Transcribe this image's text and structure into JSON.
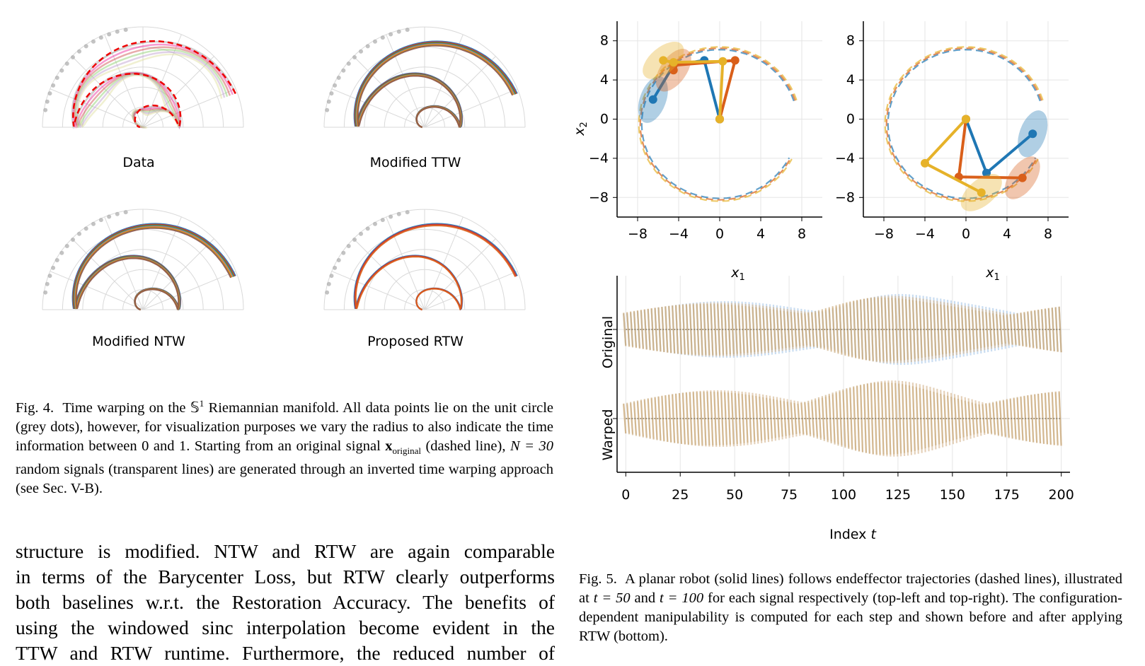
{
  "fig4": {
    "panels": [
      {
        "label": "Data"
      },
      {
        "label": "Modified TTW"
      },
      {
        "label": "Modified NTW"
      },
      {
        "label": "Proposed RTW"
      }
    ],
    "caption_prefix": "Fig. 4.",
    "caption_part1": "Time warping on the ",
    "caption_sym": "𝕊",
    "caption_sup": "1",
    "caption_part2": " Riemannian manifold. All data points lie on the unit circle (grey dots), however, for visualization purposes we vary the radius to also indicate the time information between 0 and 1. Starting from an original signal ",
    "caption_x": "x",
    "caption_sub": "original",
    "caption_part3": " (dashed line), ",
    "caption_N": "N = 30",
    "caption_part4": " random signals (transparent lines) are generated through an inverted time warping approach (see Sec. V-B)."
  },
  "body_lines": [
    "structure is modified. NTW and RTW are again comparable",
    "in terms of the Barycenter Loss, but RTW clearly outperforms",
    "both baselines w.r.t. the Restoration Accuracy. The benefits of",
    "using the windowed sinc interpolation become evident in the",
    "TTW and RTW runtime. Furthermore, the reduced number of"
  ],
  "fig5": {
    "caption_prefix": "Fig. 5.",
    "caption_part1": "A planar robot (solid lines) follows endeffector trajectories (dashed lines), illustrated at ",
    "caption_t50": "t = 50",
    "caption_and": " and ",
    "caption_t100": "t = 100",
    "caption_part2": " for each signal respectively (top-left and top-right). The configuration-dependent manipulability is computed for each step and shown before and after applying RTW (bottom).",
    "top_left": {
      "xlabel": "x",
      "xlabel_sub": "1",
      "ylabel": "x",
      "ylabel_sub": "2"
    },
    "top_right": {
      "xlabel": "x",
      "xlabel_sub": "1"
    },
    "bottom": {
      "row_labels": [
        "Original",
        "Warped"
      ],
      "xlabel_prefix": "Index ",
      "xlabel_var": "t"
    },
    "colors": {
      "blue": "#1f77b4",
      "orange": "#d95f1a",
      "yellow": "#e6b229",
      "grey": "#888888",
      "tan": "#c8b08a"
    }
  },
  "chart_data": [
    {
      "type": "line",
      "title": "",
      "xlabel": "x1",
      "ylabel": "x2",
      "xlim": [
        -10,
        10
      ],
      "ylim": [
        -10,
        10
      ],
      "xticks": [
        -8,
        -4,
        0,
        4,
        8
      ],
      "yticks": [
        8,
        4,
        0,
        -4,
        -8
      ],
      "grid": true,
      "series": [
        {
          "name": "",
          "x": [
            0,
            -1.5,
            -4.5,
            -6.5
          ],
          "y": [
            0,
            6,
            5.5,
            2
          ]
        },
        {
          "name": "",
          "x": [
            0,
            1.5,
            -4.5,
            -4.5
          ],
          "y": [
            0,
            6,
            5.5,
            5.0
          ]
        },
        {
          "name": "",
          "x": [
            0,
            0.3,
            -4.5,
            -5.5
          ],
          "y": [
            0,
            5.9,
            5.8,
            6
          ]
        }
      ]
    },
    {
      "type": "line",
      "title": "",
      "xlabel": "x1",
      "ylabel": "",
      "xlim": [
        -10,
        10
      ],
      "ylim": [
        -10,
        10
      ],
      "xticks": [
        -8,
        -4,
        0,
        4,
        8
      ],
      "yticks": [
        8,
        4,
        0,
        -4,
        -8
      ],
      "grid": true,
      "series": [
        {
          "name": "",
          "x": [
            0,
            2,
            6.5
          ],
          "y": [
            0,
            -5.5,
            -1.5
          ]
        },
        {
          "name": "",
          "x": [
            0,
            -0.7,
            5.5
          ],
          "y": [
            0,
            -5.9,
            -6
          ]
        },
        {
          "name": "",
          "x": [
            0,
            -4,
            1.5
          ],
          "y": [
            0,
            -4.5,
            -7.5
          ]
        }
      ]
    },
    {
      "type": "area",
      "title": "",
      "xlabel": "Index t",
      "ylabel": "",
      "xlim": [
        -4,
        204
      ],
      "xticks": [
        0,
        25,
        50,
        75,
        100,
        125,
        150,
        175,
        200
      ],
      "rows": [
        "Original",
        "Warped"
      ],
      "grid": true
    }
  ]
}
